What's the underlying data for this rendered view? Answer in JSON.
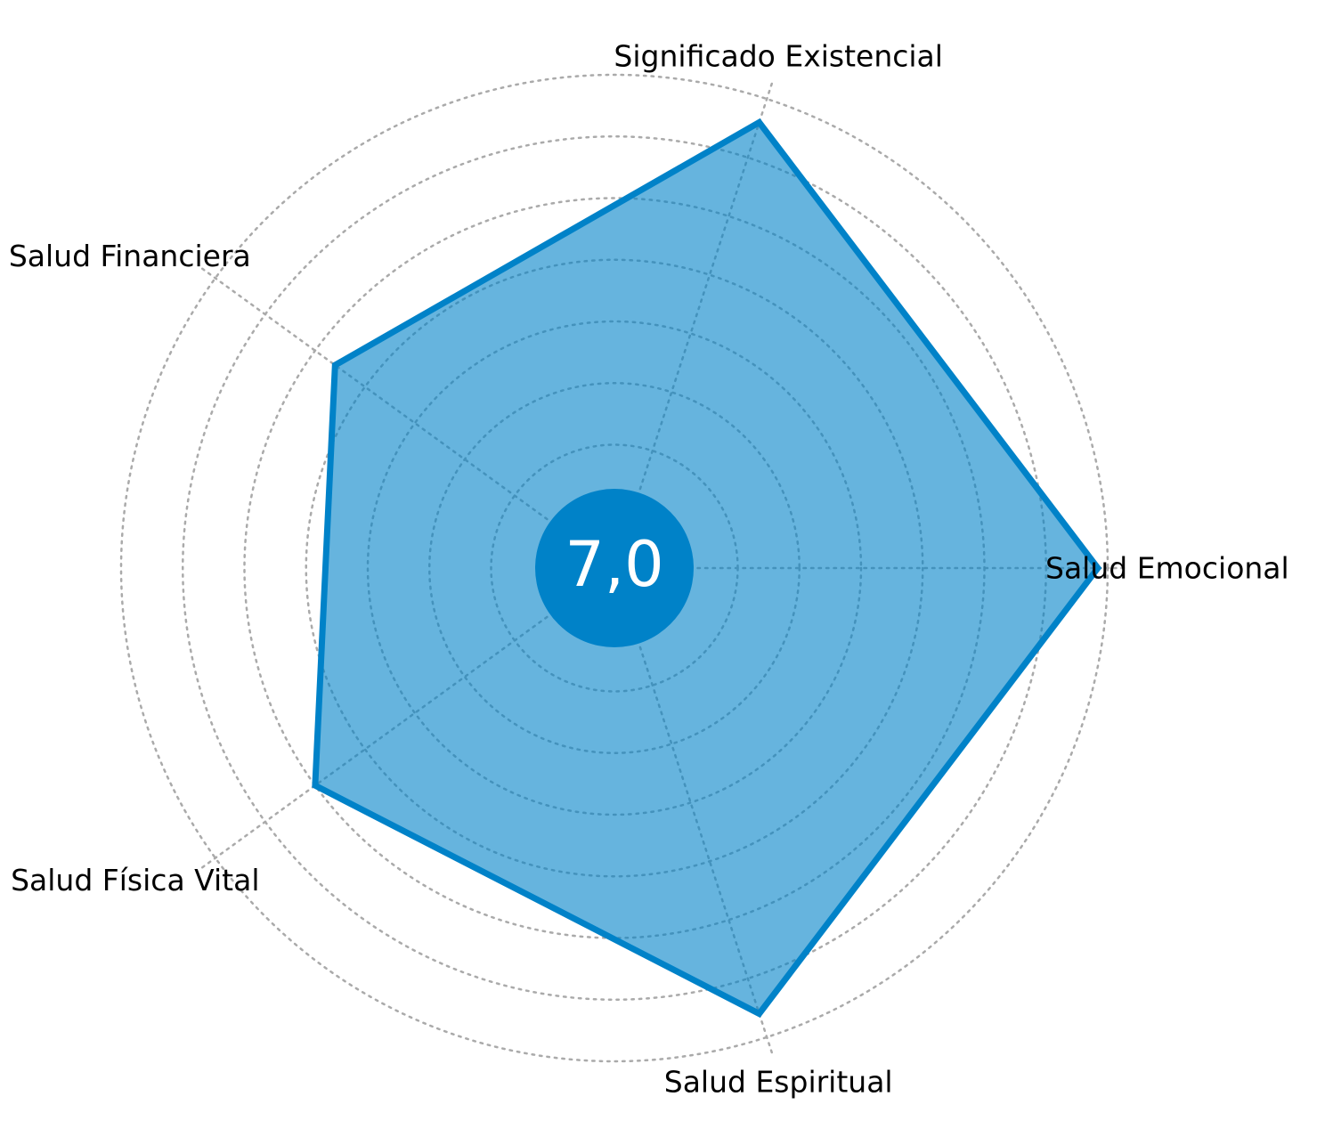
{
  "chart_data": {
    "type": "radar",
    "axes": [
      "Salud Emocional",
      "Significado Existencial",
      "Salud Financiera",
      "Salud Física Vital",
      "Salud Espiritual"
    ],
    "series": [
      {
        "values": [
          9.8,
          9.5,
          7.0,
          7.5,
          9.5
        ]
      }
    ],
    "rlim": [
      0,
      10
    ],
    "rings": [
      2.5,
      3.75,
      5,
      6.25,
      7.5,
      8.75,
      10
    ],
    "grid": true,
    "center_label": "7,0",
    "colors": {
      "fill": "#0082c8",
      "line": "#0082c8",
      "center_circle": "#0082c8",
      "center_text": "#ffffff",
      "grid": "#aaaaaa"
    }
  }
}
